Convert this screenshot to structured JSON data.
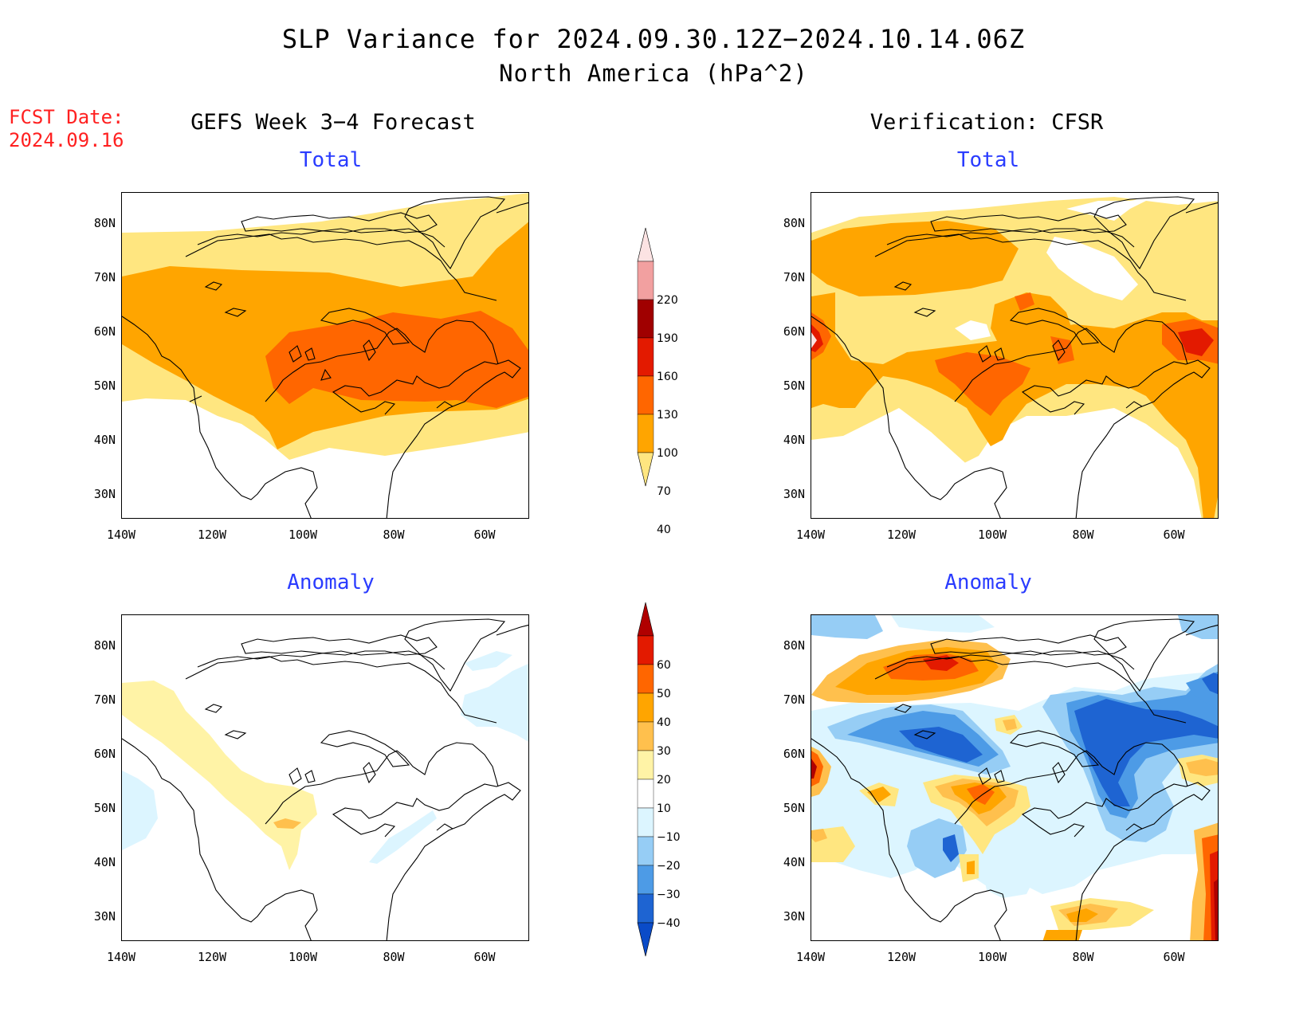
{
  "title": {
    "line1": "SLP Variance for 2024.09.30.12Z−2024.10.14.06Z",
    "line2": "North America (hPa^2)"
  },
  "fcst_date": {
    "label": "FCST Date:",
    "value": "2024.09.16"
  },
  "columns": {
    "left": "GEFS Week 3−4 Forecast",
    "right": "Verification: CFSR"
  },
  "panels": {
    "total_fcst": "Total",
    "total_ver": "Total",
    "anom_fcst": "Anomaly",
    "anom_ver": "Anomaly"
  },
  "axes": {
    "lat_labels": [
      "80N",
      "70N",
      "60N",
      "50N",
      "40N",
      "30N"
    ],
    "lon_labels": [
      "140W",
      "120W",
      "100W",
      "80W",
      "60W"
    ]
  },
  "colorbars": {
    "total": {
      "levels": [
        "220",
        "190",
        "160",
        "130",
        "100",
        "70",
        "40"
      ],
      "colors": [
        "#fce3e3",
        "#f2a0a0",
        "#a00000",
        "#e31a00",
        "#ff6600",
        "#ffa500",
        "#ffe680"
      ]
    },
    "anomaly": {
      "levels": [
        "60",
        "50",
        "40",
        "30",
        "20",
        "10",
        "−10",
        "−20",
        "−30",
        "−40"
      ],
      "colors": [
        "#b00000",
        "#e31a00",
        "#ff6600",
        "#ffa500",
        "#ffc04d",
        "#fff3a6",
        "#ffffff",
        "#dcf5ff",
        "#96cdf5",
        "#4d9be6",
        "#1e64d2",
        "#0a4bc8"
      ]
    }
  },
  "fill_colors": {
    "yellow": "#ffe680",
    "orange": "#ffa500",
    "dark_orange": "#ff6600",
    "red": "#e31a00",
    "pale_yellow": "#fff3a6",
    "light_orange": "#ffc04d",
    "pale_blue": "#dcf5ff",
    "light_blue": "#96cdf5",
    "mid_blue": "#4d9be6",
    "blue": "#1e64d2",
    "dark_red": "#b00000"
  }
}
